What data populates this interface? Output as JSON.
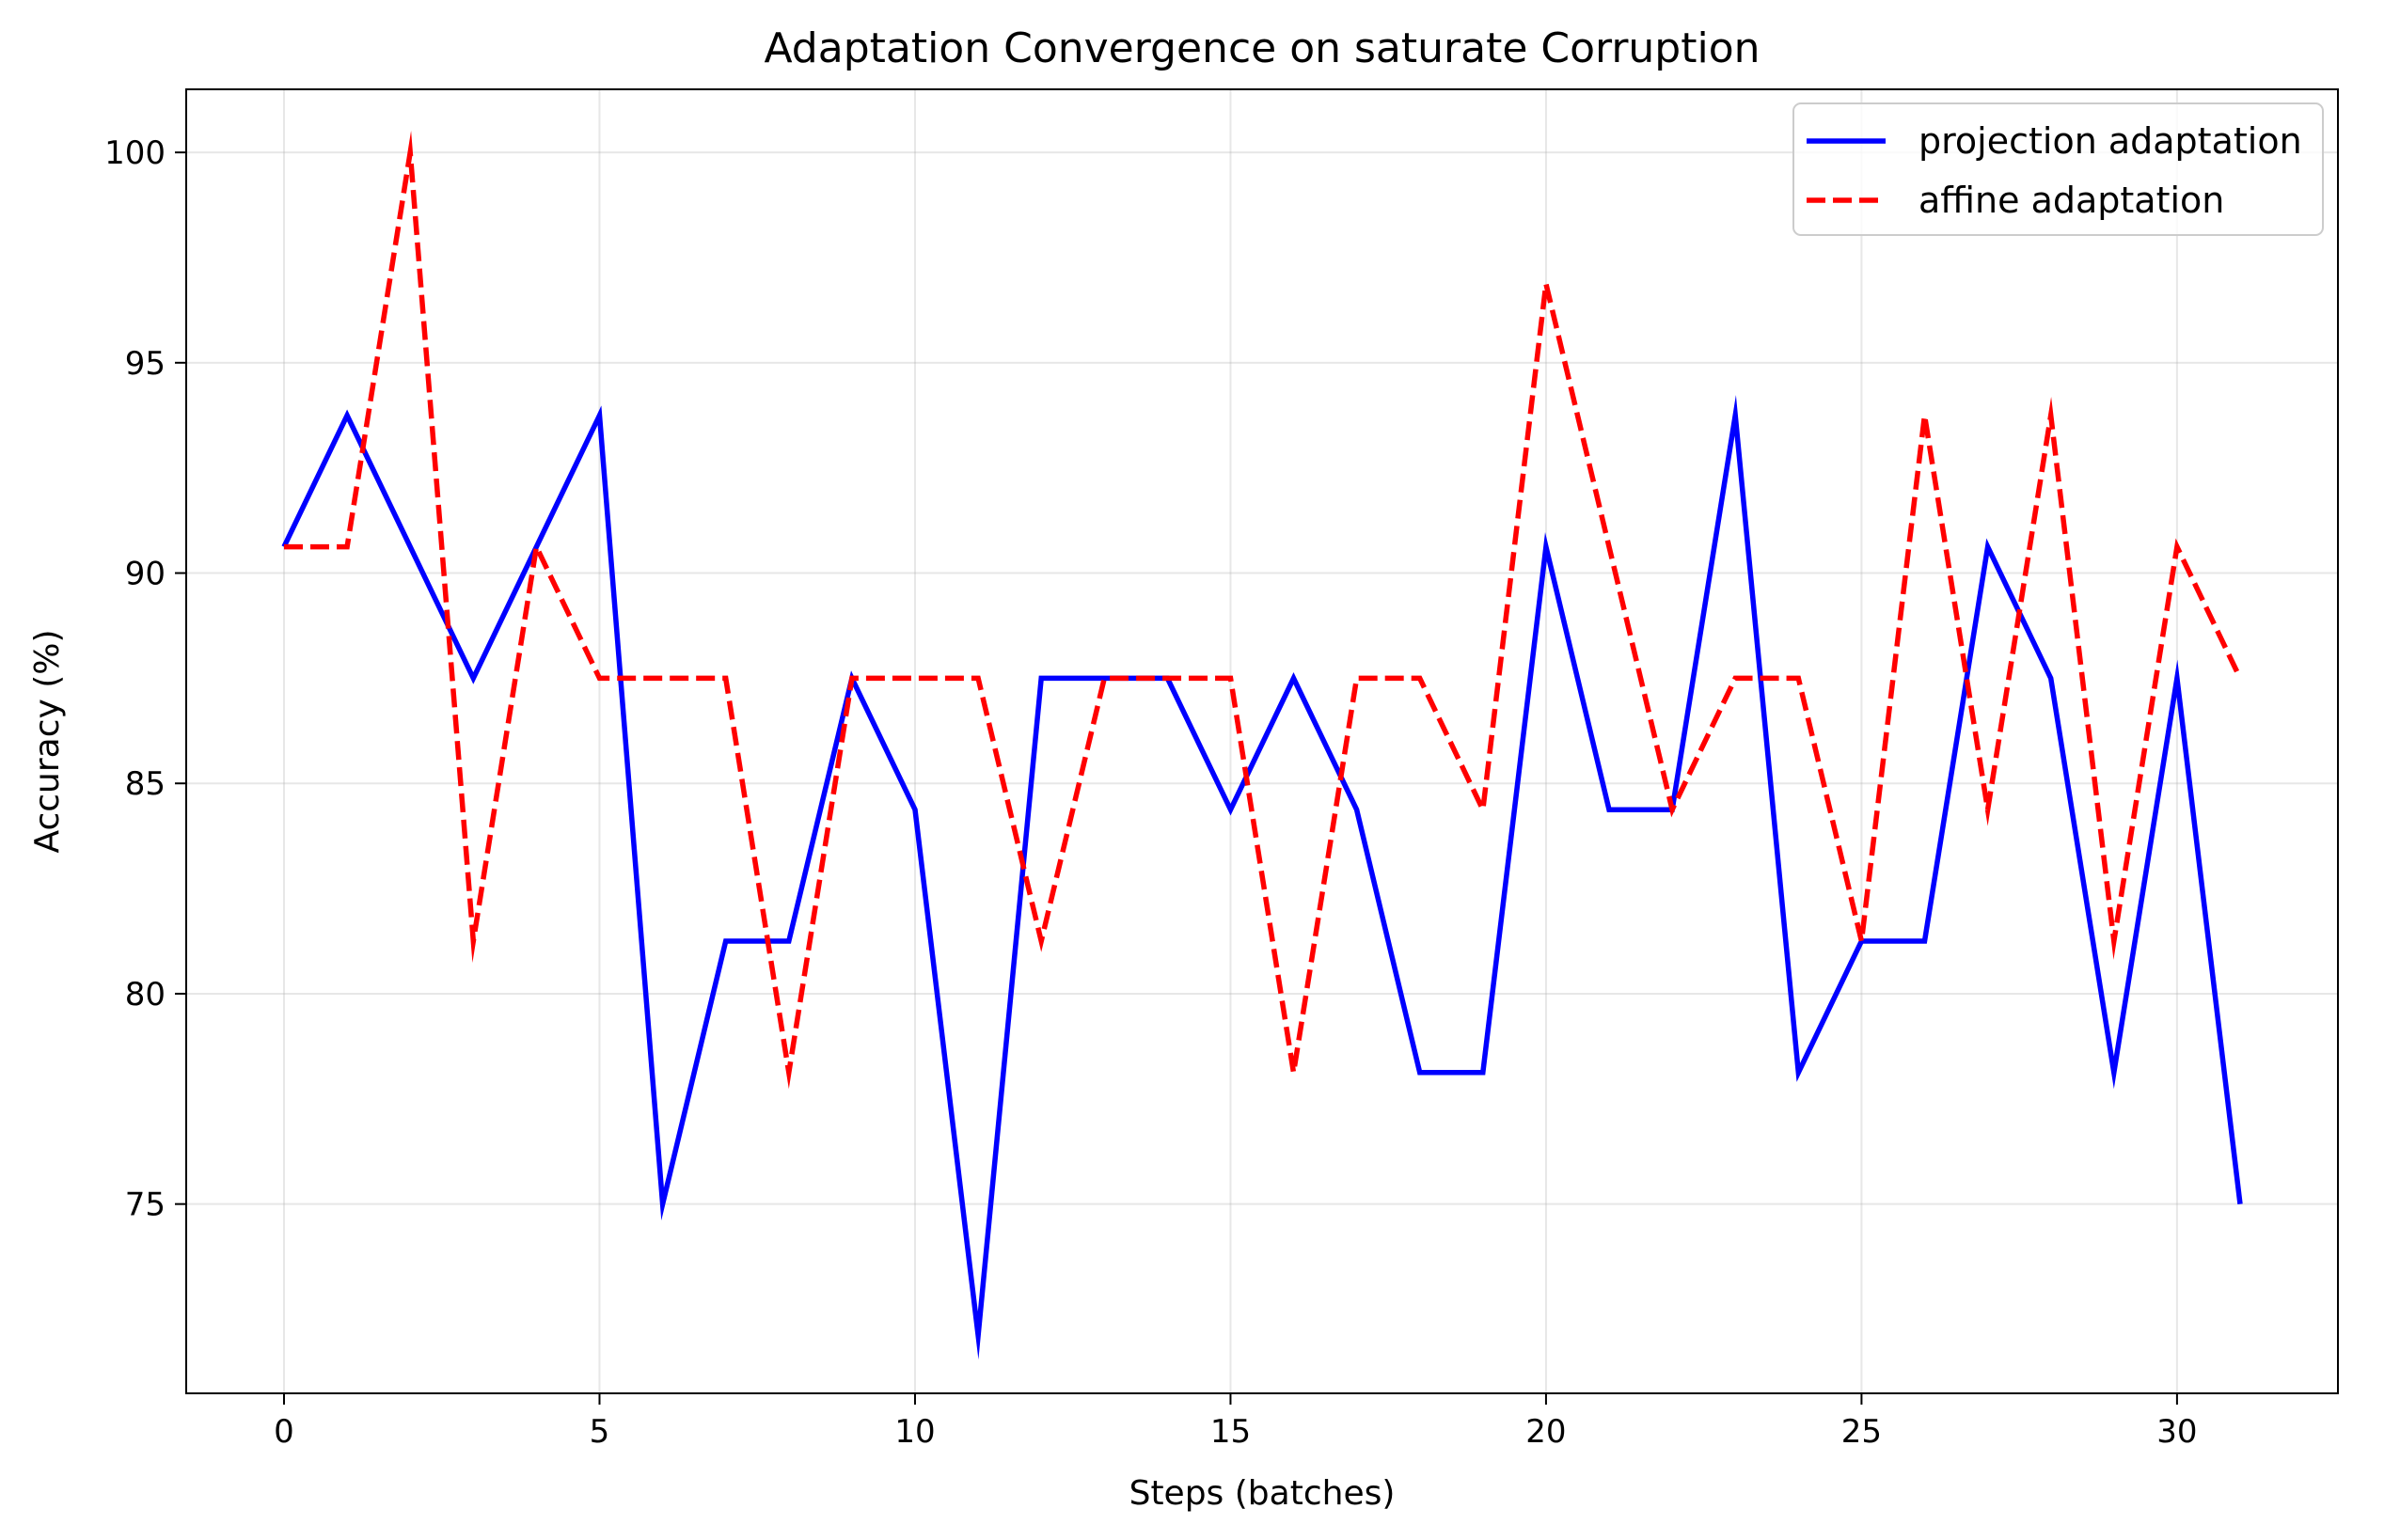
{
  "chart_data": {
    "type": "line",
    "title": "Adaptation Convergence on saturate Corruption",
    "xlabel": "Steps (batches)",
    "ylabel": "Accuracy (%)",
    "xlim": [
      -1.55,
      32.55
    ],
    "ylim": [
      70.5,
      101.5
    ],
    "xticks": [
      0,
      5,
      10,
      15,
      20,
      25,
      30
    ],
    "yticks": [
      75,
      80,
      85,
      90,
      95,
      100
    ],
    "grid": true,
    "legend_position": "top-right",
    "x": [
      0,
      1,
      2,
      3,
      4,
      5,
      6,
      7,
      8,
      9,
      10,
      11,
      12,
      13,
      14,
      15,
      16,
      17,
      18,
      19,
      20,
      21,
      22,
      23,
      24,
      25,
      26,
      27,
      28,
      29,
      30,
      31
    ],
    "series": [
      {
        "name": "projection adaptation",
        "color": "#0000ff",
        "style": "solid",
        "values": [
          90.625,
          93.75,
          90.625,
          87.5,
          90.625,
          93.75,
          75.0,
          81.25,
          81.25,
          87.5,
          84.375,
          71.875,
          87.5,
          87.5,
          87.5,
          84.375,
          87.5,
          84.375,
          78.125,
          78.125,
          90.625,
          84.375,
          84.375,
          93.75,
          78.125,
          81.25,
          81.25,
          90.625,
          87.5,
          78.125,
          87.5,
          75.0
        ]
      },
      {
        "name": "affine adaptation",
        "color": "#ff0000",
        "style": "dashed",
        "values": [
          90.625,
          90.625,
          100.0,
          81.25,
          90.625,
          87.5,
          87.5,
          87.5,
          78.125,
          87.5,
          87.5,
          87.5,
          81.25,
          87.5,
          87.5,
          87.5,
          78.125,
          87.5,
          87.5,
          84.375,
          96.875,
          90.625,
          84.375,
          87.5,
          87.5,
          81.25,
          93.75,
          84.375,
          93.75,
          81.25,
          90.625,
          87.5
        ]
      }
    ]
  }
}
